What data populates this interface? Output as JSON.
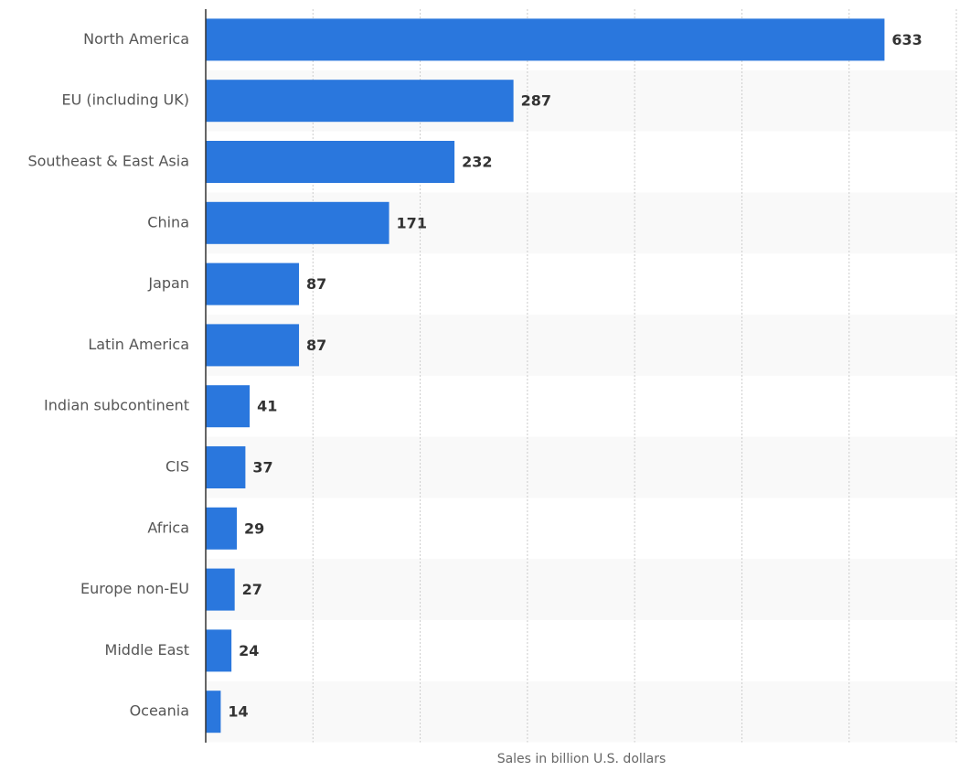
{
  "chart_data": {
    "type": "bar",
    "orientation": "horizontal",
    "title": "",
    "xlabel": "Sales in billion U.S. dollars",
    "ylabel": "",
    "xlim": [
      0,
      700
    ],
    "x_gridlines": [
      100,
      200,
      300,
      400,
      500,
      600,
      700
    ],
    "grid": true,
    "bar_color": "#2a77dd",
    "stripe_color": "#f9f9f9",
    "gridline_color": "#cccccc",
    "categories": [
      "North America",
      "EU (including UK)",
      "Southeast & East Asia",
      "China",
      "Japan",
      "Latin America",
      "Indian subcontinent",
      "CIS",
      "Africa",
      "Europe non-EU",
      "Middle East",
      "Oceania"
    ],
    "values": [
      633,
      287,
      232,
      171,
      87,
      87,
      41,
      37,
      29,
      27,
      24,
      14
    ],
    "data_labels": [
      "633",
      "287",
      "232",
      "171",
      "87",
      "87",
      "41",
      "37",
      "29",
      "27",
      "24",
      "14"
    ]
  }
}
